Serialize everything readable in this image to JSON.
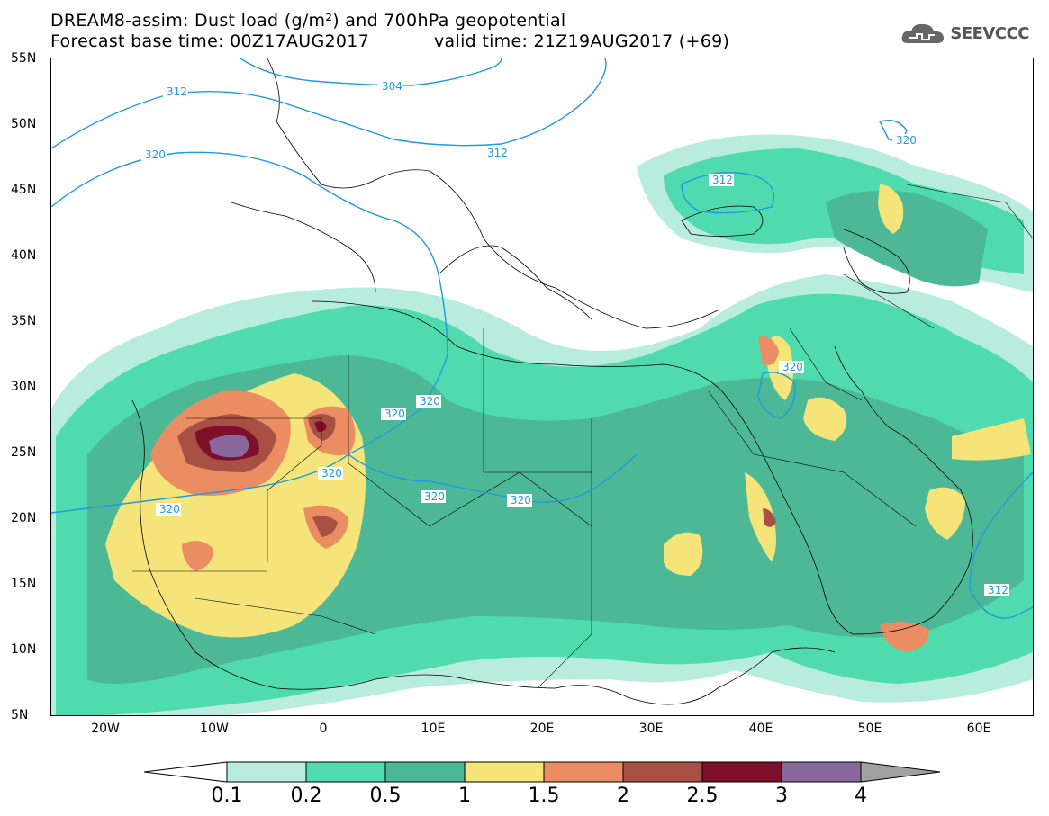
{
  "header": {
    "title": "DREAM8-assim: Dust load (g/m²) and 700hPa geopotential",
    "base_time": "Forecast base time: 00Z17AUG2017",
    "valid_time": "valid time: 21Z19AUG2017 (+69)"
  },
  "logo": {
    "text": "SEEVCCC",
    "icon": "cloud-icon"
  },
  "axes": {
    "lat_labels": [
      "55N",
      "50N",
      "45N",
      "40N",
      "35N",
      "30N",
      "25N",
      "20N",
      "15N",
      "10N",
      "5N"
    ],
    "lon_labels": [
      "20W",
      "10W",
      "0",
      "10E",
      "20E",
      "30E",
      "40E",
      "50E",
      "60E"
    ],
    "lat_range": [
      5,
      55
    ],
    "lon_range": [
      -25,
      65
    ]
  },
  "colorbar": {
    "labels": [
      "0.1",
      "0.2",
      "0.5",
      "1",
      "1.5",
      "2",
      "2.5",
      "3",
      "4"
    ],
    "colors": [
      "#b8ecdf",
      "#4fdbae",
      "#4db895",
      "#f4e47a",
      "#ea8d63",
      "#a85043",
      "#7e0f2a",
      "#8a679c",
      "#a0a0a0"
    ],
    "left_arrow_color": "#ffffff"
  },
  "contour_labels": {
    "z304": "304",
    "z312": "312",
    "z320": "320"
  },
  "colors": {
    "contour_line": "#1e9ae0",
    "land_outline": "#000000"
  }
}
